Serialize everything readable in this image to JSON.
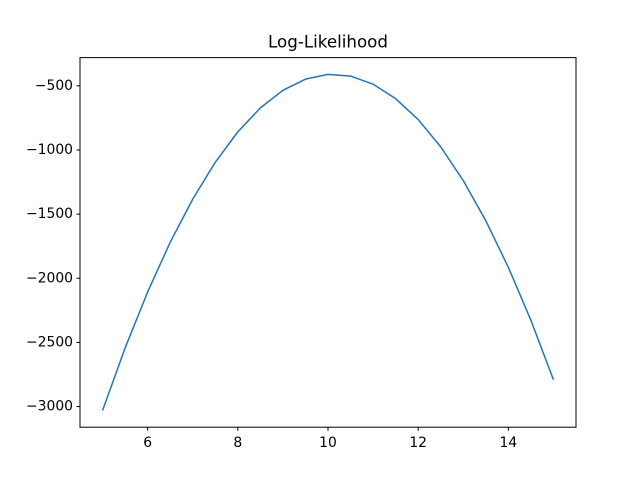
{
  "chart_data": {
    "type": "line",
    "title": "Log-Likelihood",
    "x": [
      5,
      5.5,
      6,
      6.5,
      7,
      7.5,
      8,
      8.5,
      9,
      9.5,
      10,
      10.5,
      11,
      11.5,
      12,
      12.5,
      13,
      13.5,
      14,
      14.5,
      15
    ],
    "series": [
      {
        "color": "#1f77b4",
        "values": [
          -3031,
          -2544,
          -2107,
          -1720,
          -1383,
          -1096,
          -859,
          -672,
          -535,
          -448,
          -411,
          -424,
          -487,
          -600,
          -763,
          -976,
          -1239,
          -1552,
          -1915,
          -2328,
          -2791
        ]
      }
    ],
    "xlim": [
      4.5,
      15.5
    ],
    "xticks": [
      6,
      8,
      10,
      12,
      14
    ],
    "ylim": [
      -3161,
      -280
    ],
    "yticks": [
      {
        "value": -500,
        "label": "−500"
      },
      {
        "value": -1000,
        "label": "−1000"
      },
      {
        "value": -1500,
        "label": "−1500"
      },
      {
        "value": -2000,
        "label": "−2000"
      },
      {
        "value": -2500,
        "label": "−2500"
      },
      {
        "value": -3000,
        "label": "−3000"
      }
    ],
    "grid": false
  }
}
